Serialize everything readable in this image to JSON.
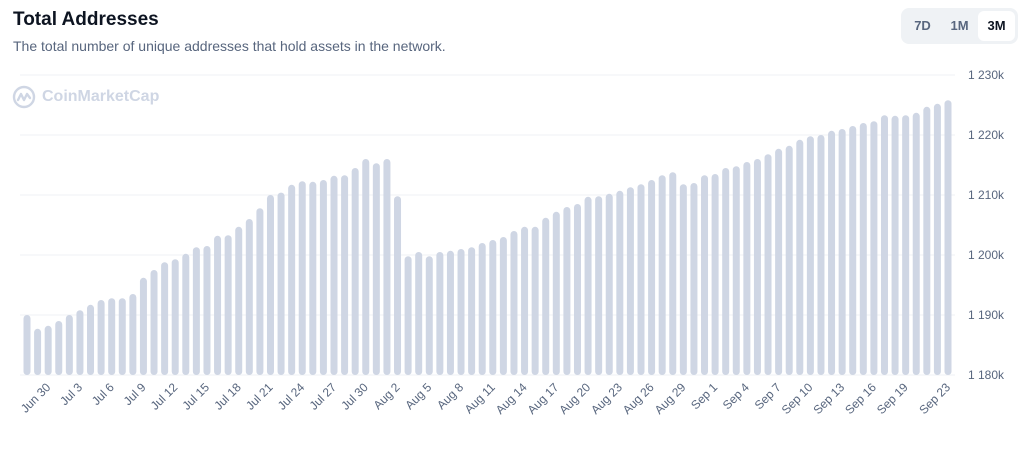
{
  "header": {
    "title": "Total Addresses",
    "subtitle": "The total number of unique addresses that hold assets in the network."
  },
  "range_buttons": [
    {
      "label": "7D",
      "active": false
    },
    {
      "label": "1M",
      "active": false
    },
    {
      "label": "3M",
      "active": true
    }
  ],
  "watermark": "CoinMarketCap",
  "colors": {
    "bar": "#cfd6e4",
    "grid": "#eff2f5",
    "text": "#58667e"
  },
  "chart_data": {
    "type": "bar",
    "title": "Total Addresses",
    "xlabel": "",
    "ylabel": "",
    "ylim": [
      1180,
      1230
    ],
    "y_unit": "k",
    "yticks": [
      "1 180k",
      "1 190k",
      "1 200k",
      "1 210k",
      "1 220k",
      "1 230k"
    ],
    "ytick_values": [
      1180,
      1190,
      1200,
      1210,
      1220,
      1230
    ],
    "grid": true,
    "first_date": "Jun 28",
    "xtick_labels": [
      "Jun 30",
      "Jul 3",
      "Jul 6",
      "Jul 9",
      "Jul 12",
      "Jul 15",
      "Jul 18",
      "Jul 21",
      "Jul 24",
      "Jul 27",
      "Jul 30",
      "Aug 2",
      "Aug 5",
      "Aug 8",
      "Aug 11",
      "Aug 14",
      "Aug 17",
      "Aug 20",
      "Aug 23",
      "Aug 26",
      "Aug 29",
      "Sep 1",
      "Sep 4",
      "Sep 7",
      "Sep 10",
      "Sep 13",
      "Sep 16",
      "Sep 19",
      "Sep 23"
    ],
    "xtick_indices": [
      2,
      5,
      8,
      11,
      14,
      17,
      20,
      23,
      26,
      29,
      32,
      35,
      38,
      41,
      44,
      47,
      50,
      53,
      56,
      59,
      62,
      65,
      68,
      71,
      74,
      77,
      80,
      83,
      87
    ],
    "values": [
      1190.0,
      1187.7,
      1188.2,
      1189.0,
      1190.0,
      1190.8,
      1191.7,
      1192.5,
      1192.8,
      1192.8,
      1193.5,
      1196.2,
      1197.5,
      1198.8,
      1199.3,
      1200.2,
      1201.3,
      1201.5,
      1203.2,
      1203.3,
      1204.7,
      1206.0,
      1207.8,
      1210.0,
      1210.4,
      1211.7,
      1212.3,
      1212.2,
      1212.5,
      1213.2,
      1213.3,
      1214.5,
      1216.0,
      1215.3,
      1216.0,
      1209.8,
      1199.8,
      1200.5,
      1199.8,
      1200.5,
      1200.7,
      1201.0,
      1201.3,
      1202.0,
      1202.5,
      1203.0,
      1204.0,
      1204.7,
      1204.7,
      1206.2,
      1207.2,
      1208.0,
      1208.5,
      1209.7,
      1209.8,
      1210.2,
      1210.7,
      1211.3,
      1211.8,
      1212.5,
      1213.3,
      1213.8,
      1211.8,
      1212.0,
      1213.3,
      1213.5,
      1214.5,
      1214.8,
      1215.5,
      1216.0,
      1216.8,
      1217.7,
      1218.2,
      1219.2,
      1219.8,
      1220.0,
      1220.7,
      1221.0,
      1221.5,
      1222.0,
      1222.3,
      1223.3,
      1223.2,
      1223.3,
      1223.7,
      1224.7,
      1225.2,
      1225.8
    ]
  }
}
